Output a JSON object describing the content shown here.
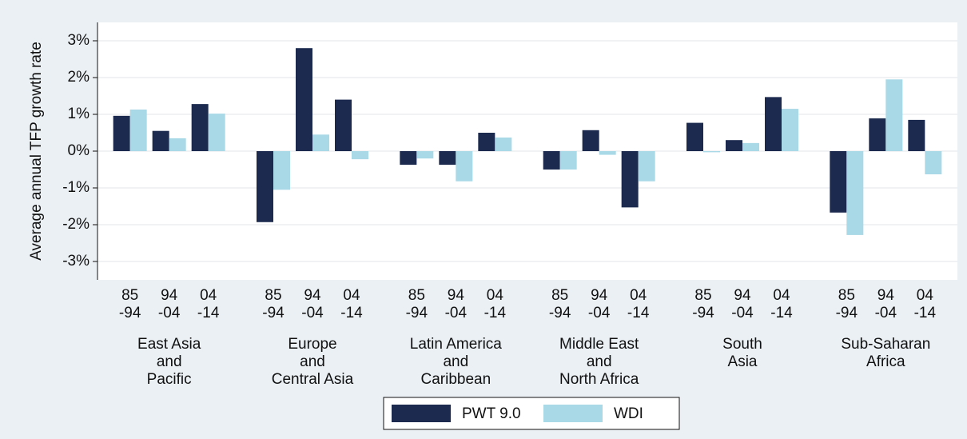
{
  "chart_data": {
    "type": "bar",
    "ylabel": "Average annual TFP growth rate",
    "groups": [
      {
        "label": [
          "East Asia",
          "and",
          "Pacific"
        ],
        "periods": [
          [
            "85",
            "-94"
          ],
          [
            "94",
            "-04"
          ],
          [
            "04",
            "-14"
          ]
        ]
      },
      {
        "label": [
          "Europe",
          "and",
          "Central Asia"
        ],
        "periods": [
          [
            "85",
            "-94"
          ],
          [
            "94",
            "-04"
          ],
          [
            "04",
            "-14"
          ]
        ]
      },
      {
        "label": [
          "Latin America",
          "and",
          "Caribbean"
        ],
        "periods": [
          [
            "85",
            "-94"
          ],
          [
            "94",
            "-04"
          ],
          [
            "04",
            "-14"
          ]
        ]
      },
      {
        "label": [
          "Middle East",
          "and",
          "North Africa"
        ],
        "periods": [
          [
            "85",
            "-94"
          ],
          [
            "94",
            "-04"
          ],
          [
            "04",
            "-14"
          ]
        ]
      },
      {
        "label": [
          "South",
          "Asia"
        ],
        "periods": [
          [
            "85",
            "-94"
          ],
          [
            "94",
            "-04"
          ],
          [
            "04",
            "-14"
          ]
        ]
      },
      {
        "label": [
          "Sub-Saharan",
          "Africa"
        ],
        "periods": [
          [
            "85",
            "-94"
          ],
          [
            "94",
            "-04"
          ],
          [
            "04",
            "-14"
          ]
        ]
      }
    ],
    "series": [
      {
        "name": "PWT 9.0",
        "color": "#1b2a4e",
        "values": [
          0.96,
          0.55,
          1.28,
          -1.93,
          2.8,
          1.4,
          -0.37,
          -0.37,
          0.5,
          -0.5,
          0.57,
          -1.53,
          0.77,
          0.3,
          1.47,
          -1.67,
          0.89,
          0.85
        ]
      },
      {
        "name": "WDI",
        "color": "#a9d8e6",
        "values": [
          1.13,
          0.35,
          1.02,
          -1.05,
          0.45,
          -0.22,
          -0.2,
          -0.82,
          0.37,
          -0.5,
          -0.1,
          -0.82,
          -0.03,
          0.22,
          1.15,
          -2.28,
          1.95,
          -0.63
        ]
      }
    ],
    "ylim": [
      -3.5,
      3.5
    ],
    "yticks": [
      {
        "value": -3,
        "label": "-3%"
      },
      {
        "value": -2,
        "label": "-2%"
      },
      {
        "value": -1,
        "label": "-1%"
      },
      {
        "value": 0,
        "label": "0%"
      },
      {
        "value": 1,
        "label": "1%"
      },
      {
        "value": 2,
        "label": "2%"
      },
      {
        "value": 3,
        "label": "3%"
      }
    ],
    "grid": true
  }
}
